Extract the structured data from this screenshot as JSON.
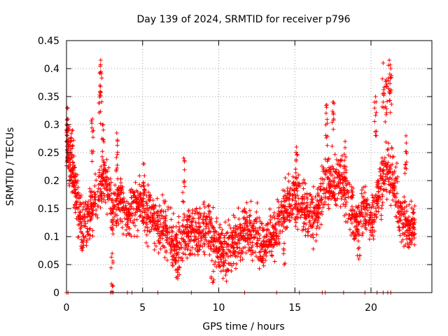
{
  "chart_data": {
    "type": "scatter",
    "title": "Day 139 of 2024, SRMTID for receiver p796",
    "xlabel": "GPS time / hours",
    "ylabel": "SRMTID / TECUs",
    "xlim": [
      0,
      24
    ],
    "ylim": [
      0,
      0.45
    ],
    "grid": true,
    "marker": "+",
    "x_ticks": [
      0,
      5,
      10,
      15,
      20
    ],
    "y_ticks": [
      0,
      0.05,
      0.1,
      0.15,
      0.2,
      0.25,
      0.3,
      0.35,
      0.4,
      0.45
    ],
    "series": [
      {
        "name": "SRMTID",
        "color": "#ff0000",
        "trend": [
          [
            0.0,
            0.27
          ],
          [
            0.3,
            0.23
          ],
          [
            0.6,
            0.18
          ],
          [
            1.0,
            0.12
          ],
          [
            1.5,
            0.14
          ],
          [
            2.0,
            0.17
          ],
          [
            2.5,
            0.2
          ],
          [
            3.0,
            0.15
          ],
          [
            3.5,
            0.17
          ],
          [
            4.0,
            0.13
          ],
          [
            4.5,
            0.16
          ],
          [
            5.0,
            0.15
          ],
          [
            5.5,
            0.14
          ],
          [
            6.0,
            0.12
          ],
          [
            6.5,
            0.12
          ],
          [
            7.0,
            0.08
          ],
          [
            7.5,
            0.09
          ],
          [
            8.0,
            0.11
          ],
          [
            8.5,
            0.1
          ],
          [
            9.0,
            0.12
          ],
          [
            9.5,
            0.11
          ],
          [
            10.0,
            0.08
          ],
          [
            10.5,
            0.07
          ],
          [
            11.0,
            0.09
          ],
          [
            11.5,
            0.1
          ],
          [
            12.0,
            0.12
          ],
          [
            12.5,
            0.1
          ],
          [
            13.0,
            0.09
          ],
          [
            13.5,
            0.1
          ],
          [
            14.0,
            0.13
          ],
          [
            14.5,
            0.15
          ],
          [
            15.0,
            0.17
          ],
          [
            15.5,
            0.15
          ],
          [
            16.0,
            0.13
          ],
          [
            16.5,
            0.15
          ],
          [
            17.0,
            0.2
          ],
          [
            17.5,
            0.19
          ],
          [
            18.0,
            0.2
          ],
          [
            18.5,
            0.17
          ],
          [
            19.0,
            0.12
          ],
          [
            19.5,
            0.15
          ],
          [
            20.0,
            0.13
          ],
          [
            20.5,
            0.18
          ],
          [
            21.0,
            0.22
          ],
          [
            21.5,
            0.2
          ],
          [
            22.0,
            0.13
          ],
          [
            22.5,
            0.12
          ],
          [
            22.9,
            0.12
          ]
        ],
        "spikes": [
          [
            0.05,
            0.33
          ],
          [
            0.1,
            0.31
          ],
          [
            0.4,
            0.29
          ],
          [
            1.7,
            0.31
          ],
          [
            2.2,
            0.37
          ],
          [
            2.25,
            0.415
          ],
          [
            2.4,
            0.3
          ],
          [
            3.0,
            0.07
          ],
          [
            3.3,
            0.285
          ],
          [
            5.1,
            0.23
          ],
          [
            7.7,
            0.24
          ],
          [
            15.1,
            0.26
          ],
          [
            17.1,
            0.335
          ],
          [
            17.5,
            0.34
          ],
          [
            18.3,
            0.27
          ],
          [
            20.3,
            0.35
          ],
          [
            20.8,
            0.41
          ],
          [
            21.0,
            0.38
          ],
          [
            21.2,
            0.415
          ],
          [
            21.3,
            0.4
          ],
          [
            22.3,
            0.28
          ]
        ],
        "dips": [
          [
            7.3,
            0.025
          ],
          [
            9.6,
            0.018
          ],
          [
            10.3,
            0.04
          ],
          [
            14.3,
            0.05
          ],
          [
            19.2,
            0.06
          ]
        ],
        "zero_points": [
          0.0,
          0.1,
          2.9,
          3.05,
          4.0,
          4.3,
          6.0,
          8.2,
          11.7,
          13.8,
          15.3,
          16.8,
          17.0,
          18.2,
          19.6,
          20.4,
          20.8,
          21.1,
          21.3
        ]
      }
    ]
  }
}
